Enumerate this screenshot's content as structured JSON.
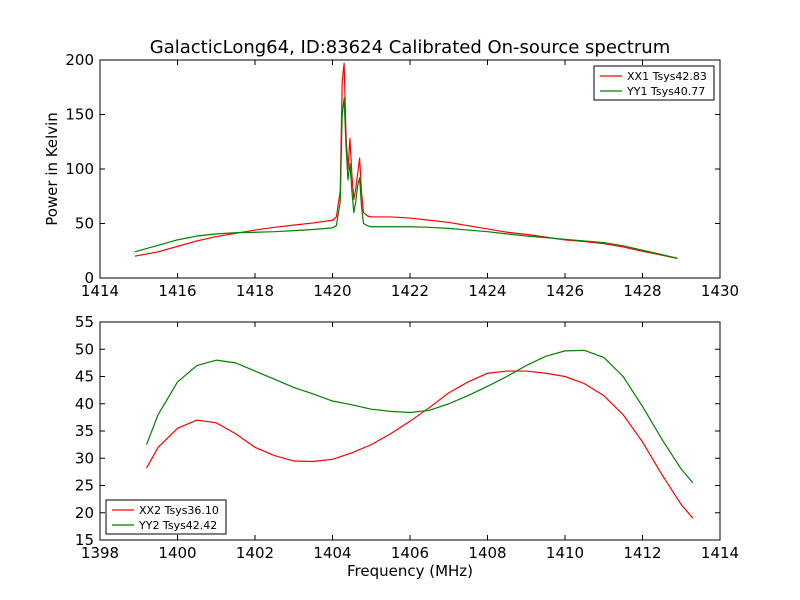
{
  "chart_data": [
    {
      "type": "line",
      "title": "GalacticLong64, ID:83624 Calibrated On-source spectrum",
      "xlabel": "",
      "ylabel": "Power in Kelvin",
      "xlim": [
        1414,
        1430
      ],
      "ylim": [
        0,
        200
      ],
      "xticks": [
        1414,
        1416,
        1418,
        1420,
        1422,
        1424,
        1426,
        1428,
        1430
      ],
      "yticks": [
        0,
        50,
        100,
        150,
        200
      ],
      "legend": "top-right",
      "series": [
        {
          "name": "XX1 Tsys42.83",
          "color": "#ff0000",
          "x": [
            1414.9,
            1415.5,
            1416,
            1416.5,
            1417,
            1417.5,
            1418,
            1418.5,
            1419,
            1419.5,
            1420,
            1420.1,
            1420.2,
            1420.25,
            1420.3,
            1420.35,
            1420.4,
            1420.45,
            1420.5,
            1420.55,
            1420.6,
            1420.65,
            1420.7,
            1420.75,
            1420.8,
            1420.9,
            1421,
            1421.5,
            1422,
            1422.5,
            1423,
            1423.5,
            1424,
            1424.5,
            1425,
            1425.5,
            1426,
            1426.5,
            1427,
            1427.5,
            1428,
            1428.5,
            1428.9
          ],
          "y": [
            20,
            24,
            29,
            34,
            38,
            41,
            44,
            46.5,
            48.5,
            50.5,
            53,
            56,
            80,
            180,
            197,
            130,
            100,
            128,
            95,
            72,
            82,
            96,
            110,
            78,
            60,
            57,
            56,
            56,
            55,
            53,
            51,
            48,
            45,
            42,
            40,
            37.5,
            35,
            33.5,
            31.5,
            28.5,
            24.5,
            21,
            18
          ]
        },
        {
          "name": "YY1 Tsys40.77",
          "color": "#008000",
          "x": [
            1414.9,
            1415.5,
            1416,
            1416.5,
            1417,
            1417.5,
            1418,
            1418.5,
            1419,
            1419.5,
            1420,
            1420.1,
            1420.2,
            1420.25,
            1420.3,
            1420.35,
            1420.4,
            1420.45,
            1420.5,
            1420.55,
            1420.6,
            1420.65,
            1420.7,
            1420.75,
            1420.8,
            1420.9,
            1421,
            1421.5,
            1422,
            1422.5,
            1423,
            1423.5,
            1424,
            1424.5,
            1425,
            1425.5,
            1426,
            1426.5,
            1427,
            1427.5,
            1428,
            1428.5,
            1428.9
          ],
          "y": [
            24,
            30,
            35,
            38.5,
            40.5,
            41.5,
            42,
            42.5,
            43.5,
            44.5,
            46,
            48,
            70,
            150,
            165,
            120,
            90,
            105,
            80,
            60,
            70,
            85,
            92,
            65,
            50,
            48,
            47,
            47,
            47,
            46.5,
            45.5,
            44,
            42.5,
            40.5,
            38.5,
            37,
            35.5,
            34,
            32.5,
            29.5,
            25.5,
            21.5,
            18
          ]
        }
      ]
    },
    {
      "type": "line",
      "title": "",
      "xlabel": "Frequency (MHz)",
      "ylabel": "",
      "xlim": [
        1398,
        1414
      ],
      "ylim": [
        15,
        55
      ],
      "xticks": [
        1398,
        1400,
        1402,
        1404,
        1406,
        1408,
        1410,
        1412,
        1414
      ],
      "yticks": [
        15,
        20,
        25,
        30,
        35,
        40,
        45,
        50,
        55
      ],
      "legend": "bottom-left",
      "series": [
        {
          "name": "XX2 Tsys36.10",
          "color": "#ff0000",
          "x": [
            1399.2,
            1399.5,
            1400,
            1400.5,
            1401,
            1401.5,
            1402,
            1402.5,
            1403,
            1403.5,
            1404,
            1404.5,
            1405,
            1405.5,
            1406,
            1406.5,
            1407,
            1407.5,
            1408,
            1408.5,
            1409,
            1409.5,
            1410,
            1410.5,
            1411,
            1411.5,
            1412,
            1412.5,
            1413,
            1413.3
          ],
          "y": [
            28.2,
            32,
            35.5,
            37,
            36.5,
            34.5,
            32,
            30.5,
            29.5,
            29.4,
            29.8,
            31,
            32.5,
            34.5,
            36.8,
            39.3,
            42,
            44,
            45.6,
            46,
            46,
            45.6,
            45,
            43.7,
            41.5,
            38,
            33,
            27,
            21.5,
            19
          ]
        },
        {
          "name": "YY2 Tsys42.42",
          "color": "#008000",
          "x": [
            1399.2,
            1399.5,
            1400,
            1400.5,
            1401,
            1401.5,
            1402,
            1402.5,
            1403,
            1403.5,
            1404,
            1404.5,
            1405,
            1405.5,
            1406,
            1406.5,
            1407,
            1407.5,
            1408,
            1408.5,
            1409,
            1409.5,
            1410,
            1410.5,
            1411,
            1411.5,
            1412,
            1412.5,
            1413,
            1413.3
          ],
          "y": [
            32.5,
            38,
            44,
            47,
            48,
            47.5,
            46,
            44.5,
            43,
            41.8,
            40.5,
            39.8,
            39,
            38.6,
            38.4,
            38.8,
            40,
            41.5,
            43.2,
            45,
            47,
            48.7,
            49.7,
            49.8,
            48.5,
            45,
            39.5,
            33.5,
            28,
            25.5
          ]
        }
      ]
    }
  ]
}
